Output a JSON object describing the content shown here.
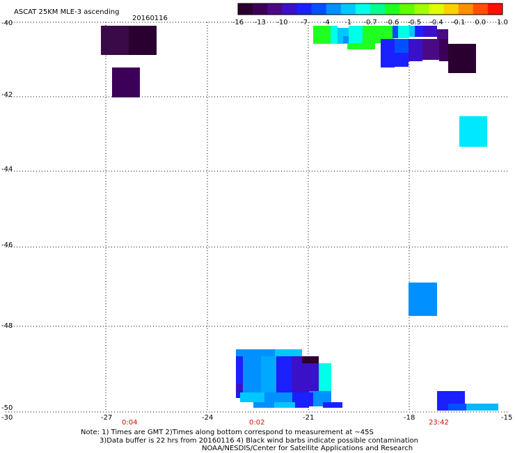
{
  "title": "ASCAT 25KM MLE-3 ascending",
  "date": "20160116",
  "colorbar": {
    "tick_labels": [
      "-16",
      "-13",
      "-10",
      "-7",
      "-4",
      "-1",
      "-0.7",
      "-0.6",
      "-0.5",
      "-0.4",
      "-0.1",
      "0.0",
      "1.0"
    ],
    "colors": [
      "#2a0030",
      "#3d0058",
      "#4a0a86",
      "#3a10c8",
      "#1a20ff",
      "#0050ff",
      "#0090ff",
      "#00c8ff",
      "#00ffe8",
      "#00ff90",
      "#20ff20",
      "#60ff00",
      "#a0ff00",
      "#e0ff00",
      "#ffd000",
      "#ff9000",
      "#ff5000",
      "#ff1000"
    ]
  },
  "map": {
    "lon_range": [
      -30,
      -15
    ],
    "lat_range": [
      -50,
      -40
    ],
    "lon_ticks": [
      "-30",
      "-27",
      "-24",
      "-21",
      "-18",
      "-15"
    ],
    "lat_ticks": [
      "-40",
      "-42",
      "-44",
      "-46",
      "-48",
      "-50"
    ],
    "time_labels": [
      "0:04",
      "0:02",
      "23:42"
    ],
    "time_label_color": "#cc1100"
  },
  "notes": {
    "line1": "Note: 1) Times are GMT 2)Times along bottom correspond to measurement at ~45S",
    "line2": "3)Data buffer is 22 hrs from 20160116 4) Black wind barbs indicate possible contamination",
    "line3": "NOAA/NESDIS/Center for Satellite Applications and Research"
  }
}
